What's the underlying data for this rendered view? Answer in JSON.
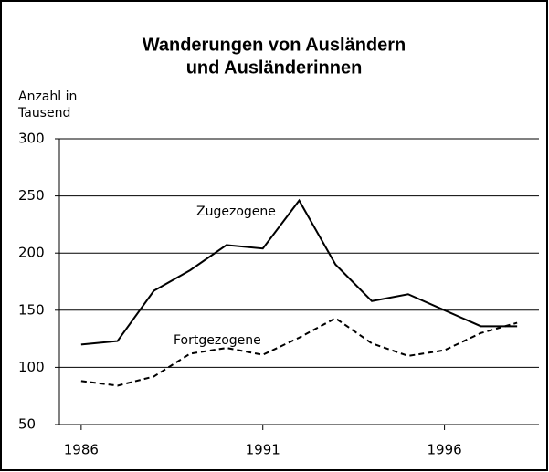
{
  "chart_data": {
    "type": "line",
    "title": [
      "Wanderungen von Ausländern",
      "und Ausländerinnen"
    ],
    "y_label": [
      "Anzahl in",
      "Tausend"
    ],
    "annotations": [
      "Zugezogene",
      "Fortgezogene"
    ],
    "x": [
      1986,
      1987,
      1988,
      1989,
      1990,
      1991,
      1992,
      1993,
      1994,
      1995,
      1996,
      1997,
      1998
    ],
    "series": [
      {
        "name": "Zugezogene",
        "color": "#000000",
        "dashed": false,
        "values": [
          120,
          123,
          167,
          185,
          207,
          204,
          246,
          190,
          158,
          164,
          150,
          136,
          136
        ]
      },
      {
        "name": "Fortgezogene",
        "color": "#000000",
        "dashed": true,
        "values": [
          88,
          84,
          92,
          112,
          117,
          111,
          126,
          143,
          121,
          110,
          115,
          130,
          139
        ]
      }
    ],
    "xlim": [
      1985.4,
      1998.6
    ],
    "xticks": [
      1986,
      1991,
      1996
    ],
    "ylim": [
      50,
      300
    ],
    "yticks": [
      50,
      100,
      150,
      200,
      250,
      300
    ],
    "grid": true
  }
}
